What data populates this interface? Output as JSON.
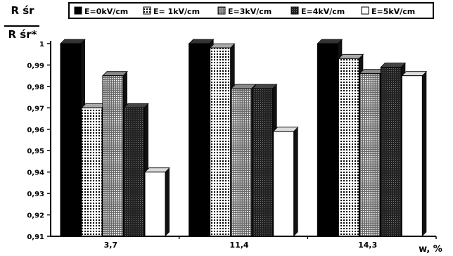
{
  "chart_data": {
    "type": "bar",
    "categories": [
      "3,7",
      "11,4",
      "14,3"
    ],
    "series": [
      {
        "name": "E=0kV/cm",
        "pattern": "solid",
        "values": [
          1.0,
          1.0,
          1.0
        ]
      },
      {
        "name": "E= 1kV/cm",
        "pattern": "dots",
        "values": [
          0.97,
          0.998,
          0.993
        ]
      },
      {
        "name": "E=3kV/cm",
        "pattern": "dense",
        "values": [
          0.985,
          0.979,
          0.986
        ]
      },
      {
        "name": "E=4kV/cm",
        "pattern": "dark",
        "values": [
          0.97,
          0.979,
          0.989
        ]
      },
      {
        "name": "E=5kV/cm",
        "pattern": "white",
        "values": [
          0.94,
          0.959,
          0.985
        ]
      }
    ],
    "ylim": [
      0.91,
      1.0
    ],
    "yticks": [
      "0,91",
      "0,92",
      "0,93",
      "0,94",
      "0,95",
      "0,96",
      "0,97",
      "0,98",
      "0,99",
      "1"
    ],
    "ylabel_top": "R śr",
    "ylabel_bottom": "R śr*",
    "xlabel": "w, %",
    "legend_position": "top"
  }
}
